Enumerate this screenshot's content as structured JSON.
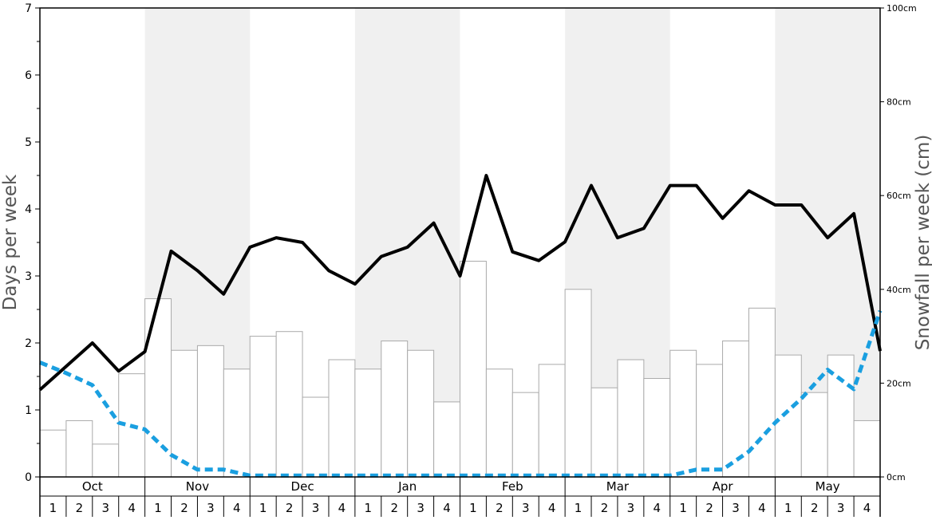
{
  "chart_data": {
    "type": "bar+line",
    "ylabel_left": "Days per week",
    "ylabel_right": "Snowfall per week (cm)",
    "ylim_left": [
      0,
      7
    ],
    "ylim_right": [
      0,
      100
    ],
    "left_ticks": [
      "0",
      "1",
      "2",
      "3",
      "4",
      "5",
      "6",
      "7"
    ],
    "right_ticks": [
      "0cm",
      "20cm",
      "40cm",
      "60cm",
      "80cm",
      "100cm"
    ],
    "months": [
      "Oct",
      "Nov",
      "Dec",
      "Jan",
      "Feb",
      "Mar",
      "Apr",
      "May"
    ],
    "weeks": [
      "1",
      "2",
      "3",
      "4"
    ],
    "shaded_months": [
      "Nov",
      "Jan",
      "Mar",
      "May"
    ],
    "grid": false,
    "colors": {
      "bars_fill": "#ffffff",
      "bars_stroke": "#aaaaaa",
      "line_black": "#000000",
      "line_blue": "#1a9fe0",
      "shade": "#f0f0f0"
    },
    "snowfall_cm_bars": [
      10,
      12,
      7,
      22,
      38,
      27,
      28,
      23,
      30,
      31,
      17,
      25,
      23,
      29,
      27,
      16,
      46,
      23,
      18,
      24,
      40,
      19,
      25,
      21,
      27,
      24,
      29,
      36,
      26,
      18,
      26,
      12
    ],
    "series": [
      {
        "style": "solid-black",
        "axis": "left",
        "values": [
          1.3,
          1.65,
          2.0,
          1.58,
          1.87,
          3.37,
          3.08,
          2.73,
          3.43,
          3.57,
          3.5,
          3.08,
          2.88,
          3.29,
          3.43,
          3.79,
          3.0,
          4.5,
          3.36,
          3.23,
          3.51,
          4.35,
          3.57,
          3.71,
          4.35,
          4.35,
          3.86,
          4.27,
          4.06,
          4.06,
          3.57,
          3.93,
          1.88
        ]
      },
      {
        "style": "dashed-blue",
        "axis": "left",
        "values": [
          1.71,
          1.55,
          1.37,
          0.81,
          0.71,
          0.33,
          0.11,
          0.11,
          0.02,
          0.02,
          0.02,
          0.02,
          0.02,
          0.02,
          0.02,
          0.02,
          0.02,
          0.02,
          0.02,
          0.02,
          0.02,
          0.02,
          0.02,
          0.02,
          0.02,
          0.11,
          0.11,
          0.38,
          0.81,
          1.17,
          1.6,
          1.31,
          2.48
        ]
      }
    ]
  }
}
